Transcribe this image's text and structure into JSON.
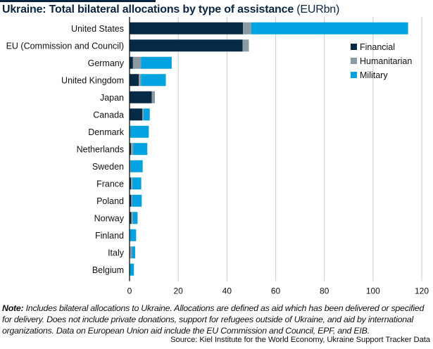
{
  "chart_data": {
    "type": "bar",
    "orientation": "horizontal",
    "stacked": true,
    "title": "Ukraine: Total bilateral allocations by type of assistance",
    "title_unit": "(EURbn)",
    "xlabel": "",
    "ylabel": "",
    "xlim": [
      0,
      120
    ],
    "xticks": [
      0,
      20,
      40,
      60,
      80,
      100,
      120
    ],
    "grid": true,
    "legend_position": "right",
    "categories": [
      "United States",
      "EU (Commission and Council)",
      "Germany",
      "United Kingdom",
      "Japan",
      "Canada",
      "Denmark",
      "Netherlands",
      "Sweden",
      "France",
      "Poland",
      "Norway",
      "Finland",
      "Italy",
      "Belgium"
    ],
    "series": [
      {
        "name": "Financial",
        "color": "#052a45",
        "values": [
          46.6,
          46.4,
          1.4,
          3.8,
          9.1,
          5.2,
          0.1,
          0.6,
          0.1,
          0.6,
          0.7,
          0.7,
          0.1,
          0.2,
          0.1
        ]
      },
      {
        "name": "Humanitarian",
        "color": "#8a9ba3",
        "values": [
          3.4,
          2.6,
          3.3,
          0.9,
          1.3,
          0.5,
          0.2,
          0.9,
          0.3,
          0.6,
          0.4,
          0.7,
          0.1,
          0.8,
          0.1
        ]
      },
      {
        "name": "Military",
        "color": "#00a2df",
        "values": [
          64.4,
          0.0,
          12.6,
          10.2,
          0.0,
          2.6,
          7.6,
          5.8,
          5.0,
          3.6,
          3.9,
          1.9,
          2.5,
          1.3,
          1.6
        ]
      }
    ]
  },
  "note": {
    "label": "Note:",
    "text": " Includes bilateral allocations to Ukraine. Allocations are defined as aid which has been delivered or specified for delivery. Does not include private donations, support for refugees outside of Ukraine, and aid by international organizations. Data on European Union aid include the EU Commission and Council, EPF, and EIB."
  },
  "source": "Source: Kiel Institute for the World Economy, Ukraine Support Tracker Data"
}
